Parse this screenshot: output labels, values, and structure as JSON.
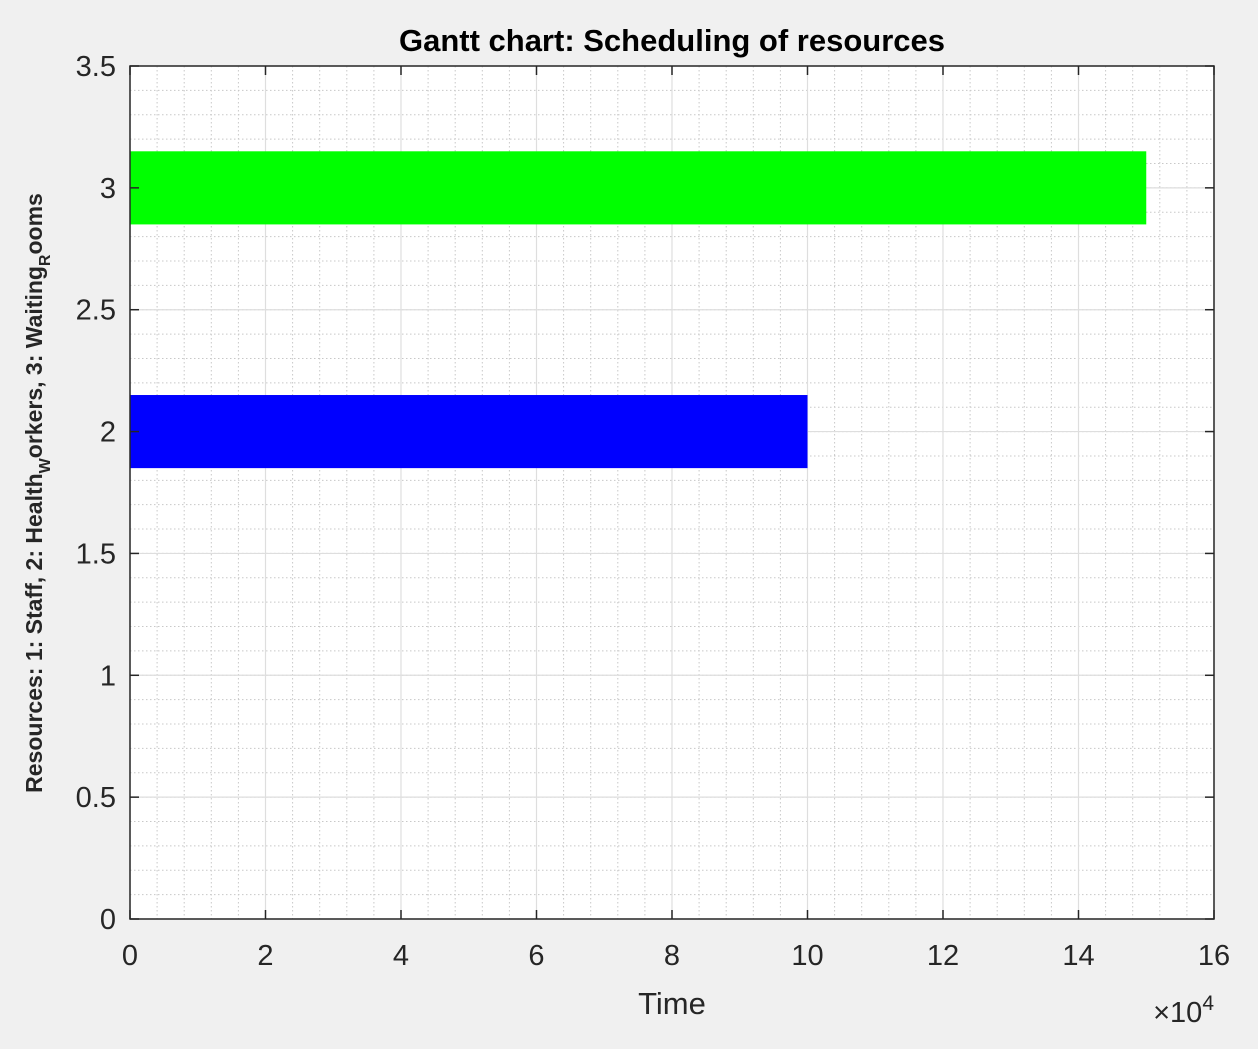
{
  "chart_data": {
    "type": "bar",
    "orientation": "horizontal",
    "title": "Gantt chart: Scheduling of resources",
    "xlabel": "Time",
    "x_multiplier": "×10",
    "x_multiplier_exponent": "4",
    "ylabel_parts": {
      "prefix": "Resources:    1: Staff,    2: Health",
      "sub1": "W",
      "mid": "orkers,    3: Waiting",
      "sub2": "R",
      "suffix": "ooms"
    },
    "xlim": [
      0,
      16
    ],
    "ylim": [
      0,
      3.5
    ],
    "xticks": [
      0,
      2,
      4,
      6,
      8,
      10,
      12,
      14,
      16
    ],
    "xtick_labels": [
      "0",
      "2",
      "4",
      "6",
      "8",
      "10",
      "12",
      "14",
      "16"
    ],
    "yticks": [
      0,
      0.5,
      1,
      1.5,
      2,
      2.5,
      3,
      3.5
    ],
    "ytick_labels": [
      "0",
      "0.5",
      "1",
      "1.5",
      "2",
      "2.5",
      "3",
      "3.5"
    ],
    "grid": true,
    "minor_grid": true,
    "bars": [
      {
        "resource": 2,
        "start": 0,
        "end": 10,
        "color": "#0000ff"
      },
      {
        "resource": 3,
        "start": 0,
        "end": 15,
        "color": "#00ff00"
      }
    ],
    "bar_half_height": 0.15
  }
}
